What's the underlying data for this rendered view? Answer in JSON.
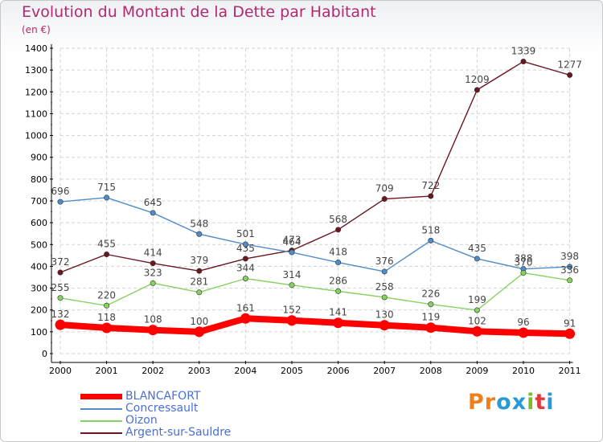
{
  "chart_data": {
    "type": "line",
    "title": "Evolution du Montant de la Dette par Habitant",
    "ylabel": "(en €)",
    "xlabel": "",
    "ylim": [
      0,
      1400
    ],
    "yticks": [
      0,
      100,
      200,
      300,
      400,
      500,
      600,
      700,
      800,
      900,
      1000,
      1100,
      1200,
      1300,
      1400
    ],
    "categories": [
      "2000",
      "2001",
      "2002",
      "2003",
      "2004",
      "2005",
      "2006",
      "2007",
      "2008",
      "2009",
      "2010",
      "2011"
    ],
    "grid": true,
    "legend_position": "bottom-left",
    "series": [
      {
        "name": "Argent-sur-Sauldre",
        "color": "#6b1620",
        "values": [
          372,
          455,
          414,
          379,
          435,
          473,
          568,
          709,
          722,
          1209,
          1339,
          1277
        ]
      },
      {
        "name": "Concressault",
        "color": "#4f8cc8",
        "values": [
          696,
          715,
          645,
          548,
          501,
          464,
          418,
          376,
          518,
          435,
          388,
          398
        ]
      },
      {
        "name": "Oizon",
        "color": "#86d261",
        "values": [
          255,
          220,
          323,
          281,
          344,
          314,
          286,
          258,
          226,
          199,
          370,
          336
        ]
      },
      {
        "name": "BLANCAFORT",
        "color": "#ff0000",
        "values": [
          132,
          118,
          108,
          100,
          161,
          152,
          141,
          130,
          119,
          102,
          96,
          91
        ]
      }
    ]
  },
  "legend": {
    "items": [
      {
        "label": "BLANCAFORT",
        "color": "#ff0000",
        "text_color": "#4a6fd8"
      },
      {
        "label": "Concressault",
        "color": "#4f8cc8",
        "text_color": "#4a6fd8"
      },
      {
        "label": "Oizon",
        "color": "#86d261",
        "text_color": "#4a6fd8"
      },
      {
        "label": "Argent-sur-Sauldre",
        "color": "#6b1620",
        "text_color": "#4a6fd8"
      }
    ]
  },
  "logo": {
    "text": "Proxiti",
    "letter_colors": [
      "#f07f1a",
      "#f07f1a",
      "#2a9ad6",
      "#2a9ad6",
      "#7dbb2a",
      "#e23a3a",
      "#2a9ad6"
    ]
  },
  "colors": {
    "title": "#b22a6b",
    "axis": "#000000",
    "grid": "#d4d4d4",
    "label": "#444444"
  }
}
